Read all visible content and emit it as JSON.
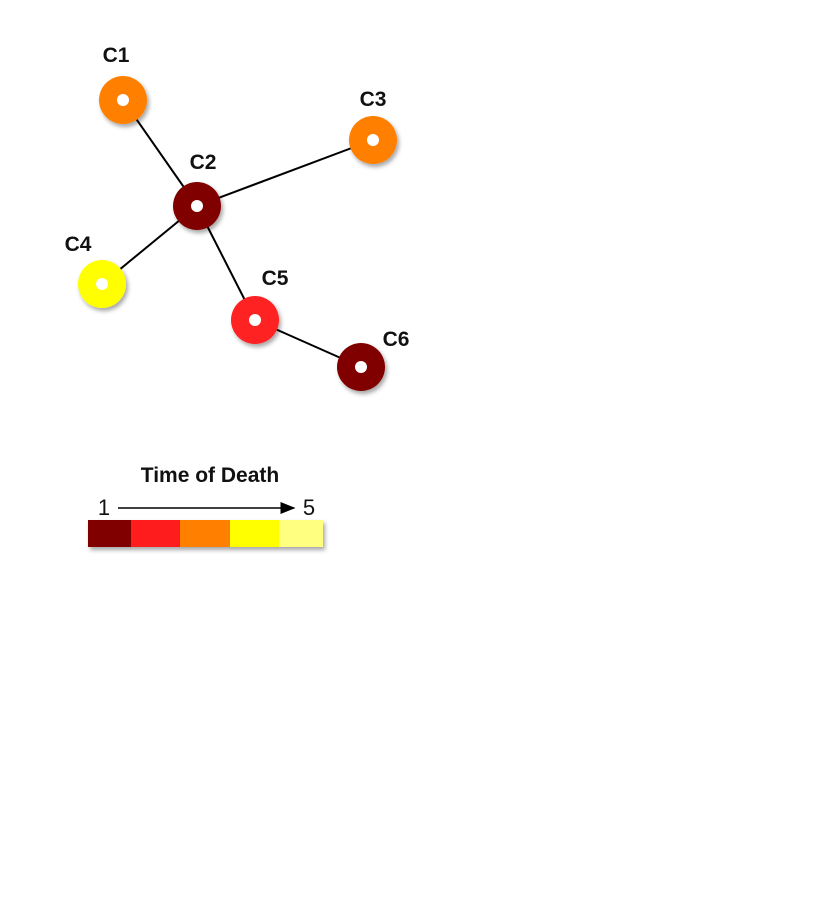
{
  "diagram": {
    "nodes": [
      {
        "id": "C1",
        "label": "C1",
        "color": "#ff8000"
      },
      {
        "id": "C2",
        "label": "C2",
        "color": "#800000"
      },
      {
        "id": "C3",
        "label": "C3",
        "color": "#ff8000"
      },
      {
        "id": "C4",
        "label": "C4",
        "color": "#ffff00"
      },
      {
        "id": "C5",
        "label": "C5",
        "color": "#ff2020"
      },
      {
        "id": "C6",
        "label": "C6",
        "color": "#800000"
      }
    ],
    "edges": [
      [
        "C1",
        "C2"
      ],
      [
        "C2",
        "C3"
      ],
      [
        "C2",
        "C4"
      ],
      [
        "C2",
        "C5"
      ],
      [
        "C5",
        "C6"
      ]
    ]
  },
  "legend": {
    "title": "Time of Death",
    "start_label": "1",
    "end_label": "5",
    "scale_colors": [
      "#800000",
      "#ff1a1a",
      "#ff8000",
      "#ffff00",
      "#ffff80"
    ]
  }
}
